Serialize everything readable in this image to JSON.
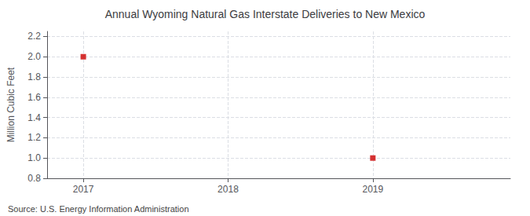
{
  "chart_data": {
    "type": "scatter",
    "title": "Annual Wyoming Natural Gas Interstate Deliveries to New Mexico",
    "ylabel": "Million Cubic Feet",
    "annotations": [
      "Source: U.S. Energy Information Administration"
    ],
    "x": [
      2017,
      2019
    ],
    "values": [
      2.0,
      1.0
    ],
    "color": "#cc0000",
    "marker": "square",
    "xlim": [
      2016.75,
      2019.95
    ],
    "ylim": [
      0.8,
      2.25
    ],
    "xticks": [
      2017,
      2018,
      2019
    ],
    "yticks": [
      0.8,
      {
        "value": 1.0,
        "label": "1.0"
      },
      1.2,
      1.4,
      1.6,
      1.8,
      {
        "value": 2.0,
        "label": "2.0"
      },
      2.2
    ],
    "grid": true
  }
}
